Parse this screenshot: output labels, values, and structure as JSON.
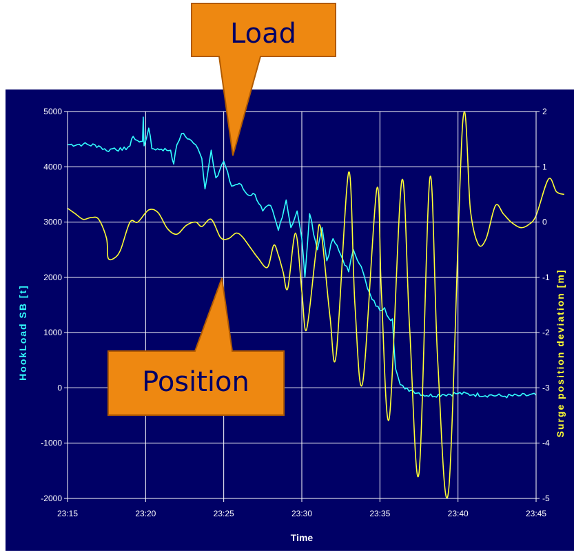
{
  "chart_data": {
    "type": "line",
    "xlabel": "Time",
    "ylabel_left": "HookLoad SB [t]",
    "ylabel_right": "Surge position deviation [m]",
    "x_ticks": [
      "23:15",
      "23:20",
      "23:25",
      "23:30",
      "23:35",
      "23:40",
      "23:45"
    ],
    "x_range_minutes": [
      0,
      30
    ],
    "ylim_left": [
      -2000,
      5000
    ],
    "y_ticks_left": [
      "5000",
      "4000",
      "3000",
      "2000",
      "1000",
      "0",
      "-1000",
      "-2000"
    ],
    "ylim_right": [
      -5,
      2
    ],
    "y_ticks_right": [
      "2",
      "1",
      "0",
      "-1",
      "-2",
      "-3",
      "-4",
      "-5"
    ],
    "grid": true,
    "series": [
      {
        "axis": "left",
        "color": "#33ffff",
        "points": [
          [
            0,
            4400
          ],
          [
            1,
            4410
          ],
          [
            2,
            4380
          ],
          [
            2.5,
            4290
          ],
          [
            3,
            4340
          ],
          [
            3.5,
            4300
          ],
          [
            4,
            4380
          ],
          [
            4.2,
            4550
          ],
          [
            4.6,
            4450
          ],
          [
            4.8,
            4460
          ],
          [
            4.85,
            4900
          ],
          [
            4.9,
            4380
          ],
          [
            5.2,
            4700
          ],
          [
            5.4,
            4330
          ],
          [
            6,
            4320
          ],
          [
            6.6,
            4300
          ],
          [
            6.8,
            4050
          ],
          [
            7,
            4400
          ],
          [
            7.3,
            4600
          ],
          [
            7.8,
            4500
          ],
          [
            8.2,
            4400
          ],
          [
            8.6,
            4150
          ],
          [
            8.8,
            3600
          ],
          [
            9.2,
            4300
          ],
          [
            9.5,
            3800
          ],
          [
            10,
            4100
          ],
          [
            10.5,
            3650
          ],
          [
            11,
            3700
          ],
          [
            11.5,
            3500
          ],
          [
            12,
            3500
          ],
          [
            12.5,
            3200
          ],
          [
            13,
            3300
          ],
          [
            13.5,
            2850
          ],
          [
            14,
            3400
          ],
          [
            14.3,
            2900
          ],
          [
            14.7,
            3200
          ],
          [
            15,
            2700
          ],
          [
            15.2,
            2000
          ],
          [
            15.5,
            3150
          ],
          [
            16,
            2500
          ],
          [
            16.3,
            2900
          ],
          [
            16.6,
            2300
          ],
          [
            17,
            2700
          ],
          [
            17.5,
            2400
          ],
          [
            18,
            2100
          ],
          [
            18.3,
            2500
          ],
          [
            18.8,
            2200
          ],
          [
            19.2,
            1800
          ],
          [
            19.5,
            1600
          ],
          [
            20,
            1400
          ],
          [
            20.3,
            1450
          ],
          [
            20.6,
            1250
          ],
          [
            20.8,
            1250
          ],
          [
            21,
            350
          ],
          [
            21.3,
            60
          ],
          [
            21.6,
            -20
          ],
          [
            22,
            -40
          ],
          [
            23,
            -140
          ],
          [
            24,
            -120
          ],
          [
            25,
            -100
          ],
          [
            26,
            -120
          ],
          [
            27,
            -130
          ],
          [
            28,
            -150
          ],
          [
            29,
            -140
          ],
          [
            30,
            -130
          ]
        ]
      },
      {
        "axis": "right",
        "color": "#ffff33",
        "points": [
          [
            0,
            0.25
          ],
          [
            0.5,
            0.15
          ],
          [
            1,
            0.05
          ],
          [
            1.5,
            0.08
          ],
          [
            2,
            0.05
          ],
          [
            2.5,
            -0.3
          ],
          [
            2.6,
            -0.65
          ],
          [
            3,
            -0.65
          ],
          [
            3.4,
            -0.5
          ],
          [
            4,
            0.0
          ],
          [
            4.5,
            0.0
          ],
          [
            5.2,
            0.22
          ],
          [
            5.8,
            0.17
          ],
          [
            6.4,
            -0.12
          ],
          [
            7,
            -0.22
          ],
          [
            7.6,
            -0.06
          ],
          [
            8.2,
            0.0
          ],
          [
            8.6,
            -0.08
          ],
          [
            9.2,
            0.05
          ],
          [
            9.8,
            -0.28
          ],
          [
            10.3,
            -0.3
          ],
          [
            10.8,
            -0.2
          ],
          [
            11.2,
            -0.27
          ],
          [
            11.8,
            -0.5
          ],
          [
            12.2,
            -0.65
          ],
          [
            12.8,
            -0.82
          ],
          [
            13.2,
            -0.42
          ],
          [
            13.5,
            -0.6
          ],
          [
            13.8,
            -0.9
          ],
          [
            14.1,
            -1.2
          ],
          [
            14.6,
            -0.2
          ],
          [
            15,
            -1.25
          ],
          [
            15.3,
            -1.95
          ],
          [
            15.9,
            -0.55
          ],
          [
            16.2,
            -0.1
          ],
          [
            16.8,
            -1.7
          ],
          [
            17.2,
            -2.4
          ],
          [
            18,
            0.9
          ],
          [
            18.4,
            -1.5
          ],
          [
            18.9,
            -2.9
          ],
          [
            19.8,
            0.6
          ],
          [
            20.1,
            -1.3
          ],
          [
            20.6,
            -3.55
          ],
          [
            21.4,
            0.75
          ],
          [
            21.9,
            -1.9
          ],
          [
            22.5,
            -4.55
          ],
          [
            23.2,
            0.8
          ],
          [
            23.7,
            -2.5
          ],
          [
            24.4,
            -4.85
          ],
          [
            25.3,
            1.8
          ],
          [
            25.8,
            0.2
          ],
          [
            26.3,
            -0.4
          ],
          [
            26.8,
            -0.3
          ],
          [
            27.4,
            0.3
          ],
          [
            27.9,
            0.15
          ],
          [
            28.4,
            0.0
          ],
          [
            29,
            -0.1
          ],
          [
            29.5,
            -0.05
          ],
          [
            30,
            0.12
          ],
          [
            30.8,
            0.78
          ],
          [
            31.3,
            0.55
          ],
          [
            31.8,
            0.5
          ]
        ]
      }
    ]
  },
  "callouts": {
    "load": "Load",
    "position": "Position",
    "color": "#ee8811"
  }
}
